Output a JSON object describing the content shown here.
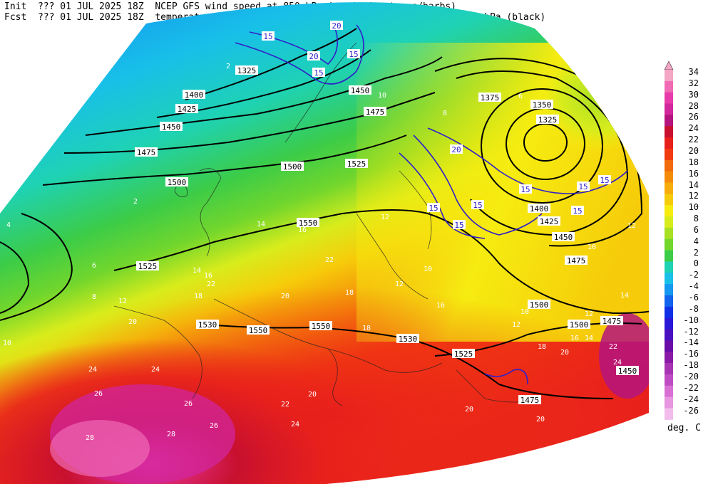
{
  "header": {
    "init_label": "Init",
    "init_value": "??? 01 JUL 2025 18Z",
    "fcst_label": "Fcst",
    "fcst_value": "??? 01 JUL 2025 18Z",
    "title_line1": "NCEP GFS wind speed at 850 hPa in m/s (contours/barbs)",
    "title_line2": "temperature (shaded/dotted) and geopotential height at 850 hPa (black)"
  },
  "colorbar": {
    "units": "deg. C",
    "levels": [
      "34",
      "32",
      "30",
      "28",
      "26",
      "24",
      "22",
      "20",
      "18",
      "16",
      "14",
      "12",
      "10",
      "8",
      "6",
      "4",
      "2",
      "0",
      "-2",
      "-4",
      "-6",
      "-8",
      "-10",
      "-12",
      "-14",
      "-16",
      "-18",
      "-20",
      "-22",
      "-24",
      "-26"
    ],
    "colors": [
      "#f4a6c4",
      "#f06ab4",
      "#e83aa8",
      "#d2269c",
      "#b4147e",
      "#c8102e",
      "#e8201c",
      "#f23a10",
      "#f26a0c",
      "#f48c0a",
      "#f6ac0a",
      "#f6cc0a",
      "#f6ec10",
      "#d8ec1c",
      "#a8e024",
      "#72d62c",
      "#3ccc48",
      "#1ed2b4",
      "#18c0e8",
      "#1498f0",
      "#1264ec",
      "#1030e8",
      "#2a18d8",
      "#4a10c0",
      "#6a0ca8",
      "#8a1aa6",
      "#a834b4",
      "#c04cc4",
      "#d870d4",
      "#e896e0",
      "#f2bcec"
    ]
  },
  "height_labels": [
    "1325",
    "1350",
    "1375",
    "1400",
    "1425",
    "1450",
    "1475",
    "1500",
    "1525",
    "1550"
  ],
  "height_contours": [
    {
      "value": "1325",
      "label_pos": [
        768,
        168
      ]
    },
    {
      "value": "1325",
      "label_pos": [
        346,
        99
      ]
    },
    {
      "value": "1350",
      "label_pos": [
        760,
        147
      ]
    },
    {
      "value": "1375",
      "label_pos": [
        687,
        137
      ]
    },
    {
      "value": "1400",
      "label_pos": [
        272,
        133
      ]
    },
    {
      "value": "1400",
      "label_pos": [
        756,
        293
      ]
    },
    {
      "value": "1425",
      "label_pos": [
        262,
        153
      ]
    },
    {
      "value": "1425",
      "label_pos": [
        770,
        311
      ]
    },
    {
      "value": "1450",
      "label_pos": [
        240,
        178
      ]
    },
    {
      "value": "1450",
      "label_pos": [
        505,
        127
      ]
    },
    {
      "value": "1450",
      "label_pos": [
        790,
        333
      ]
    },
    {
      "value": "1450",
      "label_pos": [
        880,
        521
      ]
    },
    {
      "value": "1475",
      "label_pos": [
        205,
        214
      ]
    },
    {
      "value": "1475",
      "label_pos": [
        526,
        157
      ]
    },
    {
      "value": "1475",
      "label_pos": [
        808,
        366
      ]
    },
    {
      "value": "1475",
      "label_pos": [
        858,
        451
      ]
    },
    {
      "value": "1475",
      "label_pos": [
        743,
        562
      ]
    },
    {
      "value": "1500",
      "label_pos": [
        248,
        256
      ]
    },
    {
      "value": "1500",
      "label_pos": [
        410,
        234
      ]
    },
    {
      "value": "1500",
      "label_pos": [
        756,
        428
      ]
    },
    {
      "value": "1500",
      "label_pos": [
        812,
        456
      ]
    },
    {
      "value": "1525",
      "label_pos": [
        500,
        230
      ]
    },
    {
      "value": "1525",
      "label_pos": [
        207,
        374
      ]
    },
    {
      "value": "1525",
      "label_pos": [
        650,
        497
      ]
    },
    {
      "value": "1530",
      "label_pos": [
        291,
        456
      ]
    },
    {
      "value": "1550",
      "label_pos": [
        432,
        313
      ]
    },
    {
      "value": "1550",
      "label_pos": [
        362,
        464
      ]
    },
    {
      "value": "1550",
      "label_pos": [
        450,
        458
      ]
    },
    {
      "value": "1530",
      "label_pos": [
        572,
        476
      ]
    }
  ],
  "wind_labels": [
    {
      "value": "20",
      "pos": [
        472,
        36
      ]
    },
    {
      "value": "15",
      "pos": [
        376,
        51
      ]
    },
    {
      "value": "15",
      "pos": [
        496,
        76
      ]
    },
    {
      "value": "20",
      "pos": [
        440,
        79
      ]
    },
    {
      "value": "15",
      "pos": [
        447,
        102
      ]
    },
    {
      "value": "20",
      "pos": [
        640,
        210
      ]
    },
    {
      "value": "15",
      "pos": [
        737,
        266
      ]
    },
    {
      "value": "15",
      "pos": [
        818,
        262
      ]
    },
    {
      "value": "15",
      "pos": [
        848,
        253
      ]
    },
    {
      "value": "15",
      "pos": [
        810,
        296
      ]
    },
    {
      "value": "15",
      "pos": [
        670,
        288
      ]
    },
    {
      "value": "15",
      "pos": [
        644,
        316
      ]
    },
    {
      "value": "15",
      "pos": [
        608,
        292
      ]
    }
  ],
  "temp_labels": [
    {
      "value": "2",
      "pos": [
        320,
        92
      ]
    },
    {
      "value": "2",
      "pos": [
        190,
        282
      ]
    },
    {
      "value": "4",
      "pos": [
        12,
        315
      ]
    },
    {
      "value": "6",
      "pos": [
        132,
        372
      ]
    },
    {
      "value": "8",
      "pos": [
        132,
        416
      ]
    },
    {
      "value": "10",
      "pos": [
        10,
        481
      ]
    },
    {
      "value": "12",
      "pos": [
        172,
        422
      ]
    },
    {
      "value": "14",
      "pos": [
        276,
        379
      ]
    },
    {
      "value": "16",
      "pos": [
        292,
        386
      ]
    },
    {
      "value": "18",
      "pos": [
        278,
        415
      ]
    },
    {
      "value": "20",
      "pos": [
        186,
        451
      ]
    },
    {
      "value": "22",
      "pos": [
        296,
        398
      ]
    },
    {
      "value": "24",
      "pos": [
        130,
        518
      ]
    },
    {
      "value": "26",
      "pos": [
        138,
        552
      ]
    },
    {
      "value": "24",
      "pos": [
        218,
        518
      ]
    },
    {
      "value": "26",
      "pos": [
        264,
        566
      ]
    },
    {
      "value": "28",
      "pos": [
        126,
        614
      ]
    },
    {
      "value": "26",
      "pos": [
        300,
        597
      ]
    },
    {
      "value": "28",
      "pos": [
        240,
        609
      ]
    },
    {
      "value": "24",
      "pos": [
        414,
        595
      ]
    },
    {
      "value": "22",
      "pos": [
        400,
        567
      ]
    },
    {
      "value": "20",
      "pos": [
        438,
        553
      ]
    },
    {
      "value": "20",
      "pos": [
        658,
        574
      ]
    },
    {
      "value": "20",
      "pos": [
        758,
        588
      ]
    },
    {
      "value": "22",
      "pos": [
        462,
        364
      ]
    },
    {
      "value": "20",
      "pos": [
        400,
        415
      ]
    },
    {
      "value": "18",
      "pos": [
        490,
        410
      ]
    },
    {
      "value": "16",
      "pos": [
        424,
        322
      ]
    },
    {
      "value": "14",
      "pos": [
        366,
        314
      ]
    },
    {
      "value": "12",
      "pos": [
        540,
        304
      ]
    },
    {
      "value": "10",
      "pos": [
        536,
        133
      ]
    },
    {
      "value": "8",
      "pos": [
        624,
        158
      ]
    },
    {
      "value": "6",
      "pos": [
        730,
        134
      ]
    },
    {
      "value": "10",
      "pos": [
        600,
        377
      ]
    },
    {
      "value": "12",
      "pos": [
        724,
        455
      ]
    },
    {
      "value": "10",
      "pos": [
        736,
        437
      ]
    },
    {
      "value": "14",
      "pos": [
        826,
        474
      ]
    },
    {
      "value": "16",
      "pos": [
        806,
        474
      ]
    },
    {
      "value": "18",
      "pos": [
        760,
        486
      ]
    },
    {
      "value": "20",
      "pos": [
        792,
        494
      ]
    },
    {
      "value": "12",
      "pos": [
        886,
        316
      ]
    },
    {
      "value": "12",
      "pos": [
        826,
        440
      ]
    },
    {
      "value": "10",
      "pos": [
        830,
        346
      ]
    },
    {
      "value": "14",
      "pos": [
        876,
        414
      ]
    },
    {
      "value": "24",
      "pos": [
        866,
        508
      ]
    },
    {
      "value": "22",
      "pos": [
        860,
        486
      ]
    },
    {
      "value": "16",
      "pos": [
        618,
        428
      ]
    },
    {
      "value": "12",
      "pos": [
        560,
        398
      ]
    },
    {
      "value": "18",
      "pos": [
        514,
        460
      ]
    }
  ]
}
